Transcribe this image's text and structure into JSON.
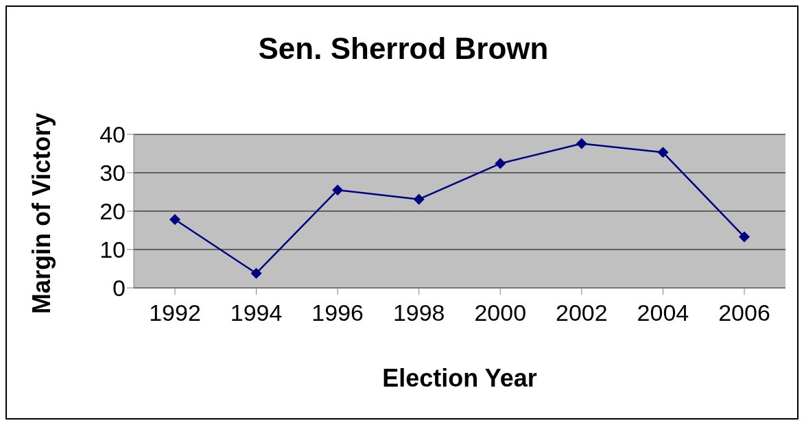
{
  "chart_data": {
    "type": "line",
    "title": "Sen. Sherrod Brown",
    "xlabel": "Election Year",
    "ylabel": "Margin of Victory",
    "categories": [
      "1992",
      "1994",
      "1996",
      "1998",
      "2000",
      "2002",
      "2004",
      "2006"
    ],
    "series": [
      {
        "color": "#000080",
        "values": [
          17.8,
          3.8,
          25.5,
          23.1,
          32.4,
          37.6,
          35.3,
          13.3
        ]
      }
    ],
    "ylim": [
      0,
      40
    ],
    "yticks": [
      0,
      10,
      20,
      30,
      40
    ],
    "grid": "y",
    "marker": "diamond",
    "line_style": "solid"
  }
}
